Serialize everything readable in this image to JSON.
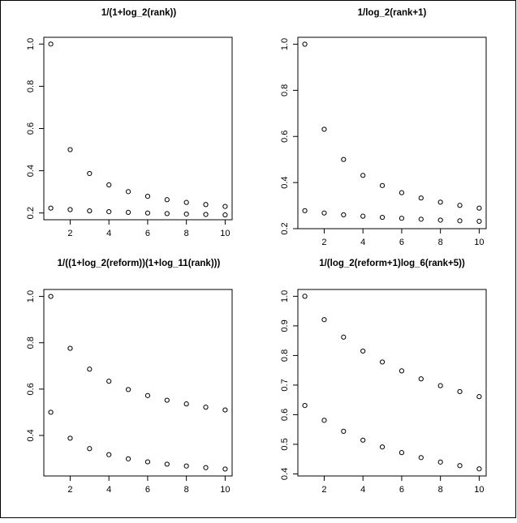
{
  "chart_data": [
    {
      "type": "scatter",
      "title": "1/(1+log_2(rank))",
      "xticks": [
        "2",
        "4",
        "6",
        "8",
        "10"
      ],
      "yticks": [
        "0.2",
        "0.4",
        "0.6",
        "0.8",
        "1.0"
      ],
      "xlim": [
        0.64,
        10.36
      ],
      "ylim": [
        0.168,
        1.032
      ],
      "series": [
        {
          "x": [
            1,
            2,
            3,
            4,
            5,
            6,
            7,
            8,
            9,
            10
          ],
          "y": [
            1.0,
            0.5,
            0.387,
            0.333,
            0.301,
            0.279,
            0.263,
            0.25,
            0.24,
            0.231
          ]
        },
        {
          "x": [
            1,
            2,
            3,
            4,
            5,
            6,
            7,
            8,
            9,
            10
          ],
          "y": [
            0.223,
            0.216,
            0.21,
            0.206,
            0.203,
            0.2,
            0.197,
            0.195,
            0.193,
            0.191
          ]
        }
      ]
    },
    {
      "type": "scatter",
      "title": "1/log_2(rank+1)",
      "xticks": [
        "2",
        "4",
        "6",
        "8",
        "10"
      ],
      "yticks": [
        "0.2",
        "0.4",
        "0.6",
        "0.8",
        "1.0"
      ],
      "xlim": [
        0.64,
        10.36
      ],
      "ylim": [
        0.2,
        1.03
      ],
      "series": [
        {
          "x": [
            1,
            2,
            3,
            4,
            5,
            6,
            7,
            8,
            9,
            10
          ],
          "y": [
            1.0,
            0.631,
            0.5,
            0.431,
            0.387,
            0.356,
            0.333,
            0.315,
            0.301,
            0.289
          ]
        },
        {
          "x": [
            1,
            2,
            3,
            4,
            5,
            6,
            7,
            8,
            9,
            10
          ],
          "y": [
            0.278,
            0.268,
            0.26,
            0.254,
            0.249,
            0.245,
            0.241,
            0.237,
            0.234,
            0.232
          ]
        }
      ]
    },
    {
      "type": "scatter",
      "title": "1/((1+log_2(reform))(1+log_11(rank)))",
      "xticks": [
        "2",
        "4",
        "6",
        "8",
        "10"
      ],
      "yticks": [
        "0.4",
        "0.6",
        "0.8",
        "1.0"
      ],
      "xlim": [
        0.64,
        10.36
      ],
      "ylim": [
        0.225,
        1.03
      ],
      "series": [
        {
          "x": [
            1,
            2,
            3,
            4,
            5,
            6,
            7,
            8,
            9,
            10
          ],
          "y": [
            1.0,
            0.776,
            0.686,
            0.634,
            0.598,
            0.572,
            0.552,
            0.536,
            0.522,
            0.51
          ]
        },
        {
          "x": [
            1,
            2,
            3,
            4,
            5,
            6,
            7,
            8,
            9,
            10
          ],
          "y": [
            0.5,
            0.388,
            0.343,
            0.317,
            0.299,
            0.286,
            0.276,
            0.268,
            0.261,
            0.255
          ]
        }
      ]
    },
    {
      "type": "scatter",
      "title": "1/(log_2(reform+1)log_6(rank+5))",
      "xticks": [
        "2",
        "4",
        "6",
        "8",
        "10"
      ],
      "yticks": [
        "0.4",
        "0.5",
        "0.6",
        "0.7",
        "0.8",
        "0.9",
        "1.0"
      ],
      "xlim": [
        0.64,
        10.36
      ],
      "ylim": [
        0.393,
        1.023
      ],
      "series": [
        {
          "x": [
            1,
            2,
            3,
            4,
            5,
            6,
            7,
            8,
            9,
            10
          ],
          "y": [
            1.0,
            0.921,
            0.862,
            0.815,
            0.778,
            0.748,
            0.721,
            0.698,
            0.678,
            0.661
          ]
        },
        {
          "x": [
            1,
            2,
            3,
            4,
            5,
            6,
            7,
            8,
            9,
            10
          ],
          "y": [
            0.631,
            0.581,
            0.544,
            0.514,
            0.491,
            0.472,
            0.455,
            0.44,
            0.428,
            0.417
          ]
        }
      ]
    }
  ]
}
